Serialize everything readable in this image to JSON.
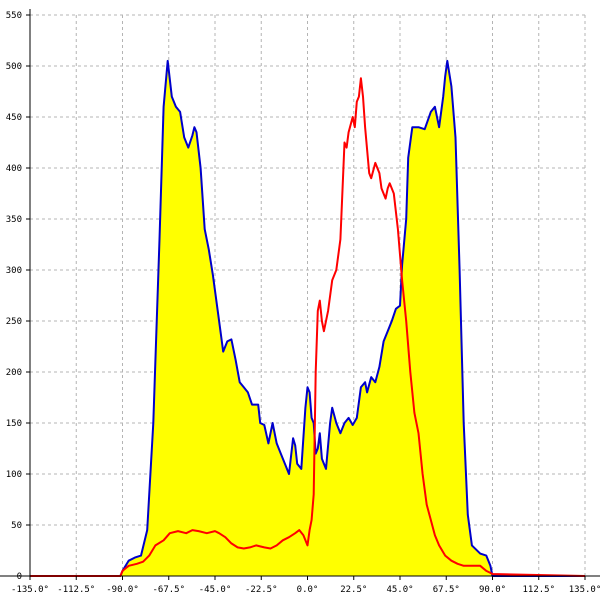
{
  "chart_data": {
    "type": "area",
    "title": "",
    "xlabel": "",
    "ylabel": "",
    "xlim": [
      -135,
      135
    ],
    "ylim": [
      0,
      550
    ],
    "grid": true,
    "x_ticks": [
      -135,
      -112.5,
      -90,
      -67.5,
      -45,
      -22.5,
      0,
      22.5,
      45,
      67.5,
      90,
      112.5,
      135
    ],
    "x_tick_labels": [
      "-135.0°",
      "-112.5°",
      "-90.0°",
      "-67.5°",
      "-45.0°",
      "-22.5°",
      "0.0°",
      "22.5°",
      "45.0°",
      "67.5°",
      "90.0°",
      "112.5°",
      "135.0°"
    ],
    "y_ticks": [
      0,
      50,
      100,
      150,
      200,
      250,
      300,
      350,
      400,
      450,
      500,
      550
    ],
    "y_tick_labels": [
      "0",
      "50",
      "100",
      "150",
      "200",
      "250",
      "300",
      "350",
      "400",
      "450",
      "500",
      "550"
    ],
    "series": [
      {
        "color": "#0000cc",
        "fill": "#ffff00",
        "points": [
          [
            -135,
            0
          ],
          [
            -91,
            0
          ],
          [
            -90,
            5
          ],
          [
            -87,
            15
          ],
          [
            -84,
            18
          ],
          [
            -81,
            20
          ],
          [
            -78,
            45
          ],
          [
            -75,
            150
          ],
          [
            -72,
            330
          ],
          [
            -70,
            460
          ],
          [
            -68,
            505
          ],
          [
            -66,
            470
          ],
          [
            -64,
            460
          ],
          [
            -62,
            455
          ],
          [
            -60,
            430
          ],
          [
            -58,
            420
          ],
          [
            -56,
            432
          ],
          [
            -55,
            440
          ],
          [
            -54,
            435
          ],
          [
            -52,
            400
          ],
          [
            -50,
            340
          ],
          [
            -48,
            320
          ],
          [
            -46,
            295
          ],
          [
            -43,
            250
          ],
          [
            -41,
            220
          ],
          [
            -39,
            230
          ],
          [
            -37,
            232
          ],
          [
            -35,
            212
          ],
          [
            -33,
            190
          ],
          [
            -31,
            185
          ],
          [
            -29,
            180
          ],
          [
            -27,
            168
          ],
          [
            -25,
            168
          ],
          [
            -24,
            168
          ],
          [
            -23,
            150
          ],
          [
            -21,
            148
          ],
          [
            -19,
            130
          ],
          [
            -17,
            150
          ],
          [
            -15,
            130
          ],
          [
            -13,
            120
          ],
          [
            -11,
            110
          ],
          [
            -9,
            100
          ],
          [
            -7,
            135
          ],
          [
            -6,
            128
          ],
          [
            -5,
            110
          ],
          [
            -3,
            105
          ],
          [
            -1,
            165
          ],
          [
            0,
            185
          ],
          [
            1,
            180
          ],
          [
            2,
            155
          ],
          [
            3,
            150
          ],
          [
            4,
            120
          ],
          [
            5,
            125
          ],
          [
            6,
            140
          ],
          [
            7,
            115
          ],
          [
            9,
            105
          ],
          [
            11,
            150
          ],
          [
            12,
            165
          ],
          [
            14,
            150
          ],
          [
            16,
            140
          ],
          [
            18,
            150
          ],
          [
            20,
            155
          ],
          [
            22,
            148
          ],
          [
            24,
            155
          ],
          [
            26,
            185
          ],
          [
            28,
            190
          ],
          [
            29,
            180
          ],
          [
            31,
            195
          ],
          [
            33,
            190
          ],
          [
            35,
            205
          ],
          [
            37,
            230
          ],
          [
            39,
            240
          ],
          [
            41,
            250
          ],
          [
            43,
            262
          ],
          [
            45,
            265
          ],
          [
            46,
            305
          ],
          [
            48,
            350
          ],
          [
            49,
            410
          ],
          [
            51,
            440
          ],
          [
            54,
            440
          ],
          [
            57,
            438
          ],
          [
            60,
            455
          ],
          [
            62,
            460
          ],
          [
            64,
            440
          ],
          [
            66,
            470
          ],
          [
            67,
            490
          ],
          [
            68,
            505
          ],
          [
            70,
            480
          ],
          [
            72,
            430
          ],
          [
            74,
            300
          ],
          [
            76,
            150
          ],
          [
            78,
            60
          ],
          [
            80,
            30
          ],
          [
            84,
            22
          ],
          [
            87,
            20
          ],
          [
            89,
            10
          ],
          [
            90,
            0
          ],
          [
            135,
            0
          ]
        ]
      },
      {
        "color": "#ff0000",
        "fill": "none",
        "points": [
          [
            -135,
            0
          ],
          [
            -91,
            0
          ],
          [
            -90,
            5
          ],
          [
            -87,
            10
          ],
          [
            -83,
            12
          ],
          [
            -80,
            14
          ],
          [
            -77,
            20
          ],
          [
            -74,
            30
          ],
          [
            -70,
            35
          ],
          [
            -67,
            42
          ],
          [
            -63,
            44
          ],
          [
            -59,
            42
          ],
          [
            -56,
            45
          ],
          [
            -53,
            44
          ],
          [
            -49,
            42
          ],
          [
            -45,
            44
          ],
          [
            -43,
            42
          ],
          [
            -40,
            38
          ],
          [
            -37,
            32
          ],
          [
            -34,
            28
          ],
          [
            -31,
            27
          ],
          [
            -28,
            28
          ],
          [
            -25,
            30
          ],
          [
            -21,
            28
          ],
          [
            -18,
            27
          ],
          [
            -15,
            30
          ],
          [
            -12,
            35
          ],
          [
            -9,
            38
          ],
          [
            -6,
            42
          ],
          [
            -4,
            45
          ],
          [
            -2,
            40
          ],
          [
            0,
            30
          ],
          [
            1,
            45
          ],
          [
            2,
            55
          ],
          [
            3,
            80
          ],
          [
            4,
            200
          ],
          [
            5,
            260
          ],
          [
            6,
            270
          ],
          [
            7,
            250
          ],
          [
            8,
            240
          ],
          [
            10,
            260
          ],
          [
            12,
            290
          ],
          [
            14,
            300
          ],
          [
            16,
            330
          ],
          [
            18,
            425
          ],
          [
            19,
            420
          ],
          [
            20,
            435
          ],
          [
            22,
            450
          ],
          [
            23,
            440
          ],
          [
            24,
            465
          ],
          [
            25,
            470
          ],
          [
            26,
            488
          ],
          [
            27,
            470
          ],
          [
            28,
            440
          ],
          [
            30,
            395
          ],
          [
            31,
            390
          ],
          [
            33,
            405
          ],
          [
            35,
            395
          ],
          [
            36,
            380
          ],
          [
            38,
            370
          ],
          [
            39,
            380
          ],
          [
            40,
            385
          ],
          [
            42,
            375
          ],
          [
            44,
            340
          ],
          [
            46,
            290
          ],
          [
            48,
            250
          ],
          [
            50,
            200
          ],
          [
            52,
            160
          ],
          [
            54,
            140
          ],
          [
            56,
            100
          ],
          [
            58,
            70
          ],
          [
            60,
            55
          ],
          [
            62,
            40
          ],
          [
            64,
            30
          ],
          [
            67,
            20
          ],
          [
            70,
            15
          ],
          [
            73,
            12
          ],
          [
            76,
            10
          ],
          [
            80,
            10
          ],
          [
            84,
            10
          ],
          [
            87,
            5
          ],
          [
            89,
            3
          ],
          [
            90,
            2
          ],
          [
            135,
            0
          ]
        ]
      }
    ]
  }
}
